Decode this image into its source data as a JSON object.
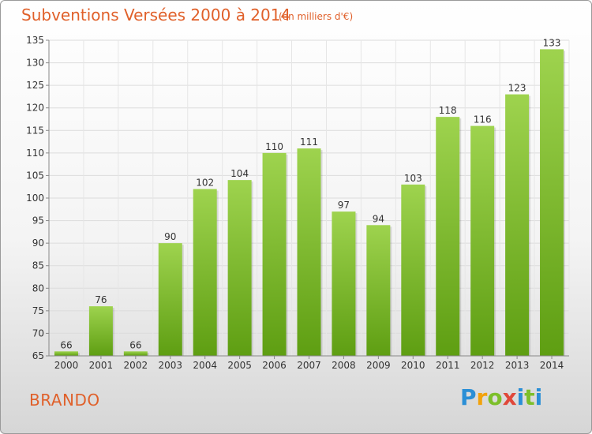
{
  "header": {
    "title": "Subventions Versées 2000 à 2014",
    "subtitle": "(en milliers d'€)"
  },
  "footer": {
    "place": "BRANDO",
    "brand_letters": [
      "P",
      "r",
      "o",
      "x",
      "i",
      "t",
      "i"
    ]
  },
  "colors": {
    "accent": "#e0602a",
    "bar_top": "#9ed34e",
    "bar_bottom": "#5e9e12"
  },
  "chart_data": {
    "type": "bar",
    "title": "Subventions Versées 2000 à 2014",
    "subtitle": "(en milliers d'€)",
    "xlabel": "",
    "ylabel": "",
    "categories": [
      "2000",
      "2001",
      "2002",
      "2003",
      "2004",
      "2005",
      "2006",
      "2007",
      "2008",
      "2009",
      "2010",
      "2011",
      "2012",
      "2013",
      "2014"
    ],
    "values": [
      66,
      76,
      66,
      90,
      102,
      104,
      110,
      111,
      97,
      94,
      103,
      118,
      116,
      123,
      133
    ],
    "ylim": [
      65,
      135
    ],
    "yticks": [
      65,
      70,
      75,
      80,
      85,
      90,
      95,
      100,
      105,
      110,
      115,
      120,
      125,
      130,
      135
    ],
    "grid": true,
    "data_labels": true
  }
}
